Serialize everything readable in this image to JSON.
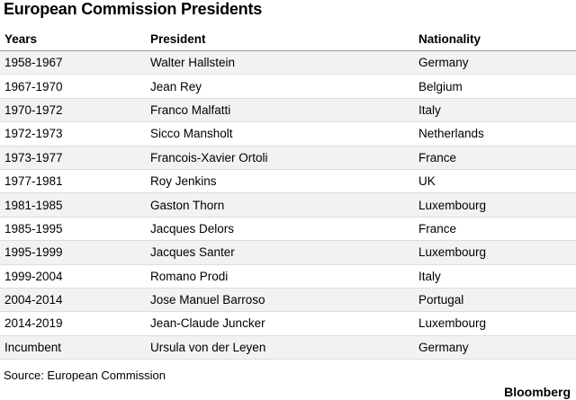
{
  "header": {
    "title": "European Commission Presidents"
  },
  "table": {
    "columns": [
      "Years",
      "President",
      "Nationality"
    ],
    "rows": [
      [
        "1958-1967",
        "Walter Hallstein",
        "Germany"
      ],
      [
        "1967-1970",
        "Jean Rey",
        "Belgium"
      ],
      [
        "1970-1972",
        "Franco Malfatti",
        "Italy"
      ],
      [
        "1972-1973",
        "Sicco Mansholt",
        "Netherlands"
      ],
      [
        "1973-1977",
        "Francois-Xavier Ortoli",
        "France"
      ],
      [
        "1977-1981",
        "Roy Jenkins",
        "UK"
      ],
      [
        "1981-1985",
        "Gaston Thorn",
        "Luxembourg"
      ],
      [
        "1985-1995",
        "Jacques Delors",
        "France"
      ],
      [
        "1995-1999",
        "Jacques Santer",
        "Luxembourg"
      ],
      [
        "1999-2004",
        "Romano Prodi",
        "Italy"
      ],
      [
        "2004-2014",
        "Jose Manuel Barroso",
        "Portugal"
      ],
      [
        "2014-2019",
        "Jean-Claude Juncker",
        "Luxembourg"
      ],
      [
        "Incumbent",
        "Ursula von der Leyen",
        "Germany"
      ]
    ]
  },
  "footer": {
    "source": "Source: European Commission",
    "brand": "Bloomberg"
  }
}
